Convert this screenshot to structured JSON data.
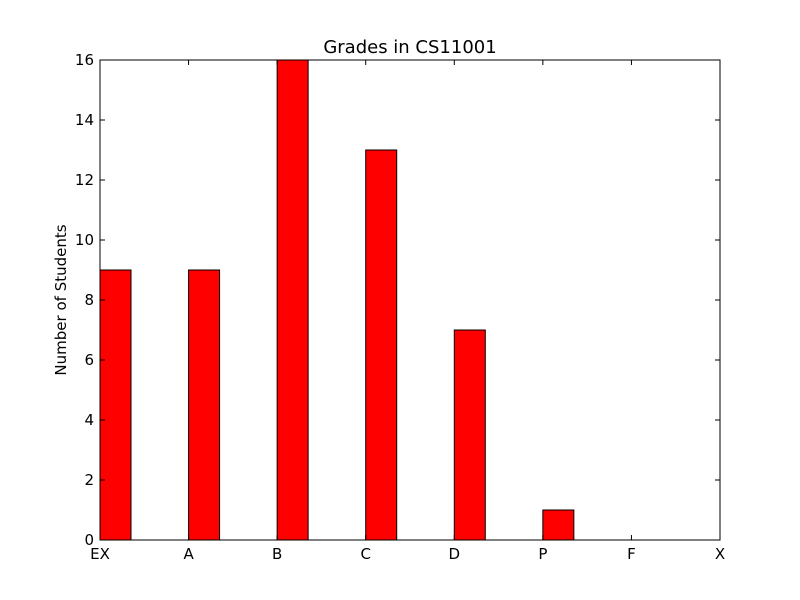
{
  "chart_data": {
    "type": "bar",
    "title": "Grades in CS11001",
    "xlabel": "",
    "ylabel": "Number of Students",
    "categories": [
      "EX",
      "A",
      "B",
      "C",
      "D",
      "P",
      "F",
      "X"
    ],
    "values": [
      9,
      9,
      16,
      13,
      7,
      1,
      0,
      0
    ],
    "ylim": [
      0,
      16
    ],
    "yticks": [
      0,
      2,
      4,
      6,
      8,
      10,
      12,
      14,
      16
    ],
    "bar_color": "#ff0000",
    "edge_color": "#000000",
    "grid": false,
    "legend": "none"
  }
}
